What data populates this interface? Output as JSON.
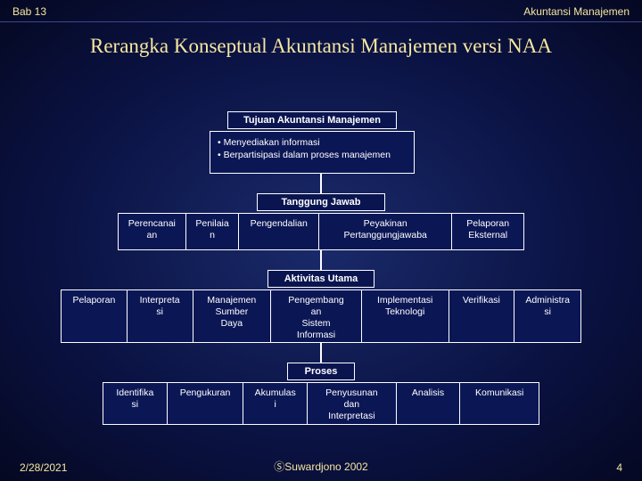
{
  "topbar": {
    "left": "Bab 13",
    "right": "Akuntansi Manajemen"
  },
  "title": "Rerangka Konseptual Akuntansi Manajemen versi NAA",
  "level1": {
    "header": "Tujuan Akuntansi Manajemen",
    "bullets": [
      "Menyediakan informasi",
      "Berpartisipasi dalam proses manajemen"
    ]
  },
  "level2": {
    "header": "Tanggung Jawab",
    "cells": [
      "Perencanai\nan",
      "Penilaia\nn",
      "Pengendalian",
      "Peyakinan\nPertanggungjawaba",
      "Pelaporan\nEksternal"
    ]
  },
  "level3": {
    "header": "Aktivitas Utama",
    "cells": [
      "Pelaporan",
      "Interpreta\nsi",
      "Manajemen\nSumber\nDaya",
      "Pengembang\nan\nSistem\nInformasi",
      "Implementasi\nTeknologi",
      "Verifikasi",
      "Administra\nsi"
    ]
  },
  "level4": {
    "header": "Proses",
    "cells": [
      "Identifika\nsi",
      "Pengukuran",
      "Akumulas\ni",
      "Penyusunan\ndan\nInterpretasi",
      "Analisis",
      "Komunikasi"
    ]
  },
  "footer": {
    "date": "2/28/2021",
    "copyright": "Suwardjono 2002",
    "page": "4"
  },
  "colors": {
    "bg_center": "#1a2a6b",
    "bg_edge": "#050822",
    "box_fill": "#0b1755",
    "box_border": "#ffffff",
    "title_color": "#f5e7a0",
    "text_color": "#ffffff"
  }
}
